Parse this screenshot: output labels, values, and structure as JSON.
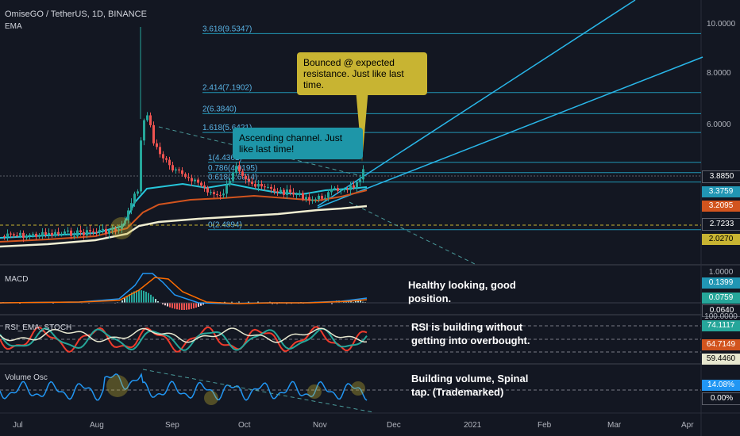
{
  "header": {
    "symbol_line": "OmiseGO / TetherUS, 1D, BINANCE",
    "overlay": "EMA"
  },
  "panes": {
    "macd": "MACD",
    "rsi": "RSI_EMA_STOCH",
    "vol": "Volume Osc"
  },
  "callouts": {
    "bounce": "Bounced @ expected resistance. Just like last time.",
    "channel": "Ascending channel. Just like last time!",
    "macd_note_1": "Healthy looking, good",
    "macd_note_2": "position.",
    "rsi_note_1": "RSI is building without",
    "rsi_note_2": "getting into overbought.",
    "vol_note_1": "Building volume, Spinal",
    "vol_note_2": "tap. (Trademarked)"
  },
  "price_axis": {
    "ticks": [
      "10.0000",
      "8.0000",
      "6.0000"
    ],
    "tags": [
      {
        "label": "3.8850",
        "color": "#131722",
        "text": "#ffffff"
      },
      {
        "label": "3.3759",
        "color": "#2196b4",
        "text": "#ffffff"
      },
      {
        "label": "3.2095",
        "color": "#d2541e",
        "text": "#ffffff"
      },
      {
        "label": "2.7233",
        "color": "#131722",
        "text": "#ffffff"
      },
      {
        "label": "2.0270",
        "color": "#c8b432",
        "text": "#000000"
      }
    ]
  },
  "macd_axis": {
    "ticks": [
      "1.0000"
    ],
    "tags": [
      {
        "label": "0.1399",
        "color": "#2196b4",
        "text": "#ffffff"
      },
      {
        "label": "0.0759",
        "color": "#26a69a",
        "text": "#ffffff"
      },
      {
        "label": "0.0640",
        "color": "#131722",
        "text": "#ffffff"
      }
    ]
  },
  "rsi_axis": {
    "ticks": [
      "100.0000"
    ],
    "tags": [
      {
        "label": "74.1117",
        "color": "#26a69a",
        "text": "#ffffff"
      },
      {
        "label": "64.7149",
        "color": "#d2541e",
        "text": "#ffffff"
      },
      {
        "label": "59.4460",
        "color": "#e8e8d0",
        "text": "#000000"
      }
    ]
  },
  "vol_axis": {
    "tags": [
      {
        "label": "14.08%",
        "color": "#2196f3",
        "text": "#ffffff"
      },
      {
        "label": "0.00%",
        "color": "#131722",
        "text": "#ffffff"
      }
    ]
  },
  "time_axis": [
    "Jul",
    "Aug",
    "Sep",
    "Oct",
    "Nov",
    "Dec",
    "2021",
    "Feb",
    "Mar",
    "Apr"
  ],
  "fib_levels": [
    "3.618(9.5347)",
    "2.414(7.1902)",
    "2(6.3840)",
    "1.618(5.6421)",
    "1(4.4361)",
    "0.786(4.0195)",
    "0.618(3.6914)",
    "0(2.4894)"
  ],
  "colors": {
    "background": "#131722",
    "up": "#26a69a",
    "down": "#ef5350",
    "ema_fast": "#26c6da",
    "ema_mid": "#d2541e",
    "ema_slow": "#f0eed2",
    "fib": "#2196b4",
    "channel": "#29b6e8",
    "callout_bg_bounce": "#c8b432",
    "callout_bg_channel": "#1e96a8"
  },
  "chart_data": {
    "type": "line",
    "title": "OmiseGO / TetherUS, 1D, BINANCE",
    "xlabel": "",
    "ylabel": "",
    "x": [
      "Jul",
      "Aug",
      "Sep",
      "Oct",
      "Nov"
    ],
    "series": [
      {
        "name": "",
        "values": [
          1.4,
          1.6,
          4.8,
          3.6,
          2.8
        ]
      }
    ],
    "last_price": 3.885,
    "ema_values": [
      3.3759,
      3.2095,
      2.027
    ],
    "fib_extension": [
      9.5347,
      7.1902,
      6.384,
      5.6421,
      4.4361,
      4.0195,
      3.6914,
      2.4894
    ],
    "macd_last": [
      0.1399,
      0.0759,
      0.064
    ],
    "rsi_last": [
      74.1117,
      64.7149,
      59.446
    ],
    "volume_osc_last": "14.08%",
    "grid": false,
    "legend": "top-left"
  }
}
